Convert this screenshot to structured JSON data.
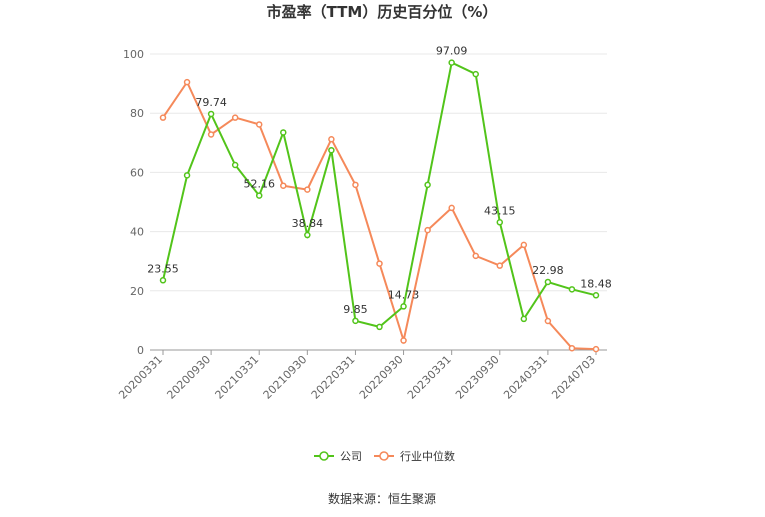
{
  "chart_data": {
    "type": "line",
    "title": "市盈率（TTM）历史百分位（%）",
    "xlabel": "",
    "ylabel": "",
    "ylim": [
      0,
      100
    ],
    "yticks": [
      0,
      20,
      40,
      60,
      80,
      100
    ],
    "grid": true,
    "legend_position": "bottom",
    "x": [
      "20200331",
      "20200630",
      "20200930",
      "20201231",
      "20210331",
      "20210630",
      "20210930",
      "20211231",
      "20220331",
      "20220630",
      "20220930",
      "20221231",
      "20230331",
      "20230630",
      "20230930",
      "20231231",
      "20240331",
      "20240630",
      "20240703"
    ],
    "xtick_labels": [
      "20200331",
      "20200930",
      "20210331",
      "20210930",
      "20220331",
      "20220930",
      "20230331",
      "20230930",
      "20240331",
      "20240703"
    ],
    "xtick_indices": [
      0,
      2,
      4,
      6,
      8,
      10,
      12,
      14,
      16,
      18
    ],
    "series": [
      {
        "name": "公司",
        "color": "#52c41a",
        "values": [
          23.55,
          59.0,
          79.74,
          62.5,
          52.16,
          73.5,
          38.84,
          67.5,
          9.85,
          7.8,
          14.73,
          55.8,
          97.09,
          93.2,
          43.15,
          10.5,
          22.98,
          20.5,
          18.48
        ],
        "labeled": [
          0,
          2,
          4,
          6,
          8,
          10,
          12,
          14,
          16,
          18
        ]
      },
      {
        "name": "行业中位数",
        "color": "#f5895a",
        "values": [
          78.5,
          90.5,
          72.8,
          78.5,
          76.2,
          55.5,
          54.2,
          71.2,
          55.8,
          29.2,
          3.2,
          40.5,
          48.0,
          31.8,
          28.5,
          35.5,
          9.8,
          0.6,
          0.3
        ],
        "labeled": []
      }
    ],
    "data_labels": [
      "23.55",
      "79.74",
      "52.16",
      "38.84",
      "9.85",
      "14.73",
      "97.09",
      "43.15",
      "22.98",
      "18.48"
    ]
  },
  "source": "数据来源：恒生聚源"
}
